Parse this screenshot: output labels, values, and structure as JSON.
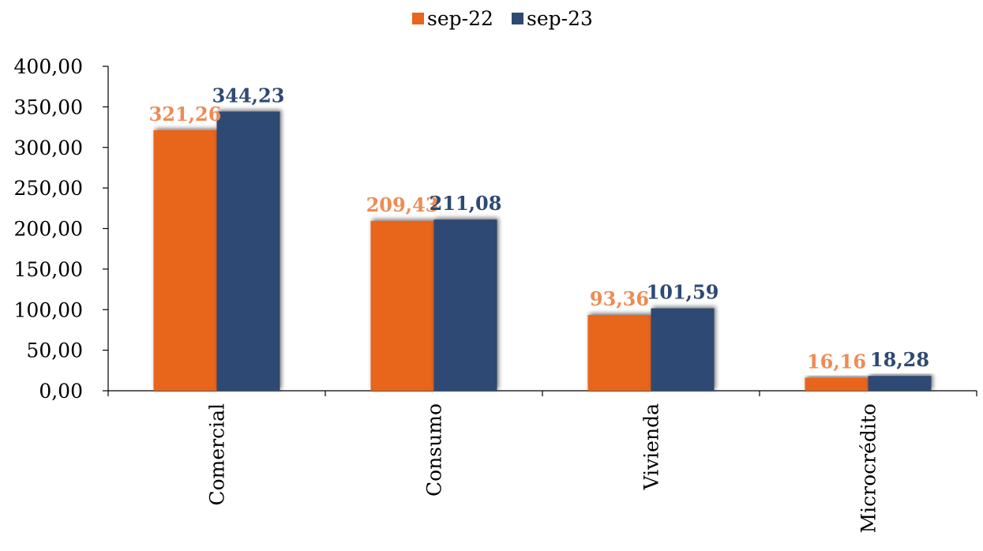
{
  "chart_data": {
    "type": "bar",
    "categories": [
      "Comercial",
      "Consumo",
      "Vivienda",
      "Microcrédito"
    ],
    "series": [
      {
        "name": "sep-22",
        "color": "#E8651E",
        "label_color": "#EE8B54",
        "values": [
          321.26,
          209.43,
          93.36,
          16.16
        ],
        "labels": [
          "321,26",
          "209,43",
          "93,36",
          "16,16"
        ]
      },
      {
        "name": "sep-23",
        "color": "#2E4A73",
        "label_color": "#2E4A73",
        "values": [
          344.23,
          211.08,
          101.59,
          18.28
        ],
        "labels": [
          "344,23",
          "211,08",
          "101,59",
          "18,28"
        ]
      }
    ],
    "ylim": [
      0,
      400
    ],
    "yticks": [
      0,
      50,
      100,
      150,
      200,
      250,
      300,
      350,
      400
    ],
    "ytick_labels": [
      "0,00",
      "50,00",
      "100,00",
      "150,00",
      "200,00",
      "250,00",
      "300,00",
      "350,00",
      "400,00"
    ],
    "legend_position": "top-center",
    "grid": false
  }
}
